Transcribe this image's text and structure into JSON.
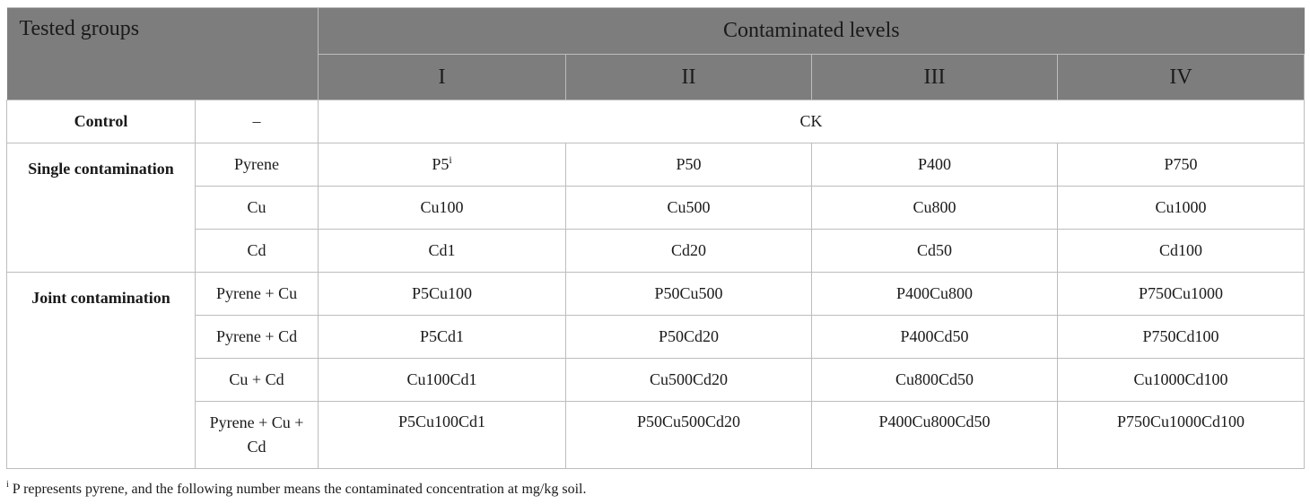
{
  "header": {
    "tested_groups": "Tested groups",
    "contaminated_levels": "Contaminated levels",
    "levels": [
      "I",
      "II",
      "III",
      "IV"
    ]
  },
  "control": {
    "group": "Control",
    "sub": "–",
    "value": "CK"
  },
  "single": {
    "group": "Single contamination",
    "rows": [
      {
        "sub": "Pyrene",
        "values": [
          "P5",
          "P50",
          "P400",
          "P750"
        ],
        "footnote_mark": "i"
      },
      {
        "sub": "Cu",
        "values": [
          "Cu100",
          "Cu500",
          "Cu800",
          "Cu1000"
        ]
      },
      {
        "sub": "Cd",
        "values": [
          "Cd1",
          "Cd20",
          "Cd50",
          "Cd100"
        ]
      }
    ]
  },
  "joint": {
    "group": "Joint contamination",
    "rows": [
      {
        "sub": "Pyrene + Cu",
        "values": [
          "P5Cu100",
          "P50Cu500",
          "P400Cu800",
          "P750Cu1000"
        ]
      },
      {
        "sub": "Pyrene + Cd",
        "values": [
          "P5Cd1",
          "P50Cd20",
          "P400Cd50",
          "P750Cd100"
        ]
      },
      {
        "sub": "Cu + Cd",
        "values": [
          "Cu100Cd1",
          "Cu500Cd20",
          "Cu800Cd50",
          "Cu1000Cd100"
        ]
      },
      {
        "sub": "Pyrene + Cu + Cd",
        "values": [
          "P5Cu100Cd1",
          "P50Cu500Cd20",
          "P400Cu800Cd50",
          "P750Cu1000Cd100"
        ]
      }
    ]
  },
  "footnote": {
    "mark": "i",
    "text": "P represents pyrene, and the following number means the contaminated concentration at mg/kg soil."
  }
}
